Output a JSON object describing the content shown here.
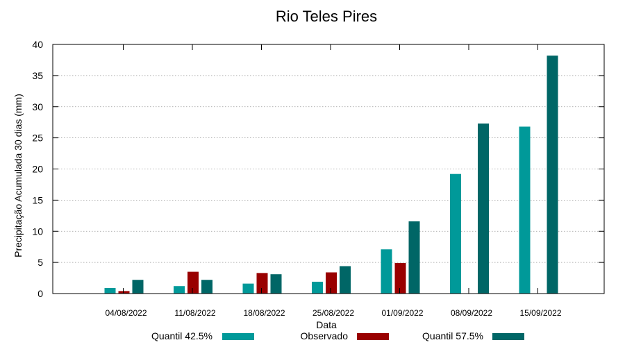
{
  "chart_data": {
    "type": "bar",
    "title": "Rio Teles Pires",
    "xlabel": "Data",
    "ylabel": "Precipitação Acumulada 30 dias (mm)",
    "ylim": [
      0,
      40
    ],
    "yticks": [
      0,
      5,
      10,
      15,
      20,
      25,
      30,
      35,
      40
    ],
    "grid": true,
    "legend_position": "bottom",
    "categories": [
      "04/08/2022",
      "11/08/2022",
      "18/08/2022",
      "25/08/2022",
      "01/09/2022",
      "08/09/2022",
      "15/09/2022"
    ],
    "series": [
      {
        "name": "Quantil 42.5%",
        "color": "#009999",
        "values": [
          0.9,
          1.2,
          1.6,
          1.9,
          7.1,
          19.2,
          26.8
        ]
      },
      {
        "name": "Observado",
        "color": "#990000",
        "values": [
          0.4,
          3.5,
          3.3,
          3.4,
          4.9,
          null,
          null
        ]
      },
      {
        "name": "Quantil 57.5%",
        "color": "#006666",
        "values": [
          2.2,
          2.2,
          3.1,
          4.4,
          11.6,
          27.3,
          38.2
        ]
      }
    ]
  }
}
